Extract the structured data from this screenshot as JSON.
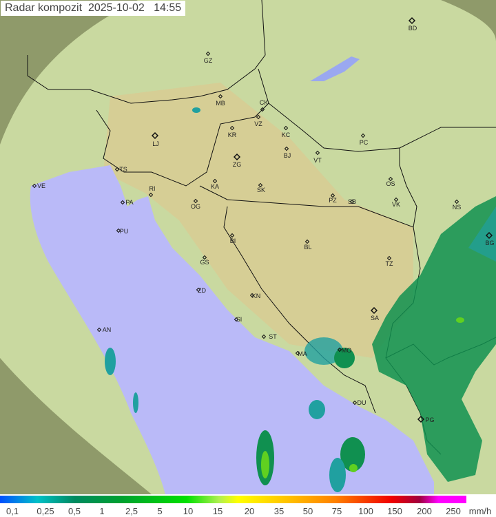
{
  "title": {
    "label": "Radar kompozit",
    "date": "2025-10-02",
    "time": "14:55"
  },
  "colors": {
    "land": "#c9d9a0",
    "highland": "#d8c890",
    "sea": "#babaf8",
    "outside_coverage": "#8f9a6a",
    "rain_light": "#20a0a0",
    "rain_medium": "#109050",
    "rain_heavy": "#60d020"
  },
  "cities": [
    "BD",
    "GZ",
    "MB",
    "CK",
    "VZ",
    "KR",
    "KC",
    "PC",
    "LJ",
    "BJ",
    "VT",
    "TS",
    "ZG",
    "VE",
    "RI",
    "KA",
    "SK",
    "OS",
    "PA",
    "OG",
    "PZ",
    "SB",
    "VK",
    "NS",
    "PU",
    "BI",
    "BL",
    "BG",
    "GS",
    "TZ",
    "ZD",
    "KN",
    "SA",
    "SI",
    "AN",
    "ST",
    "MO",
    "MA",
    "DU",
    "PG"
  ],
  "legend": {
    "unit": "mm/h",
    "ticks": [
      "0,1",
      "0,25",
      "0,5",
      "1",
      "2,5",
      "5",
      "10",
      "15",
      "20",
      "35",
      "50",
      "75",
      "100",
      "150",
      "200",
      "250"
    ]
  }
}
